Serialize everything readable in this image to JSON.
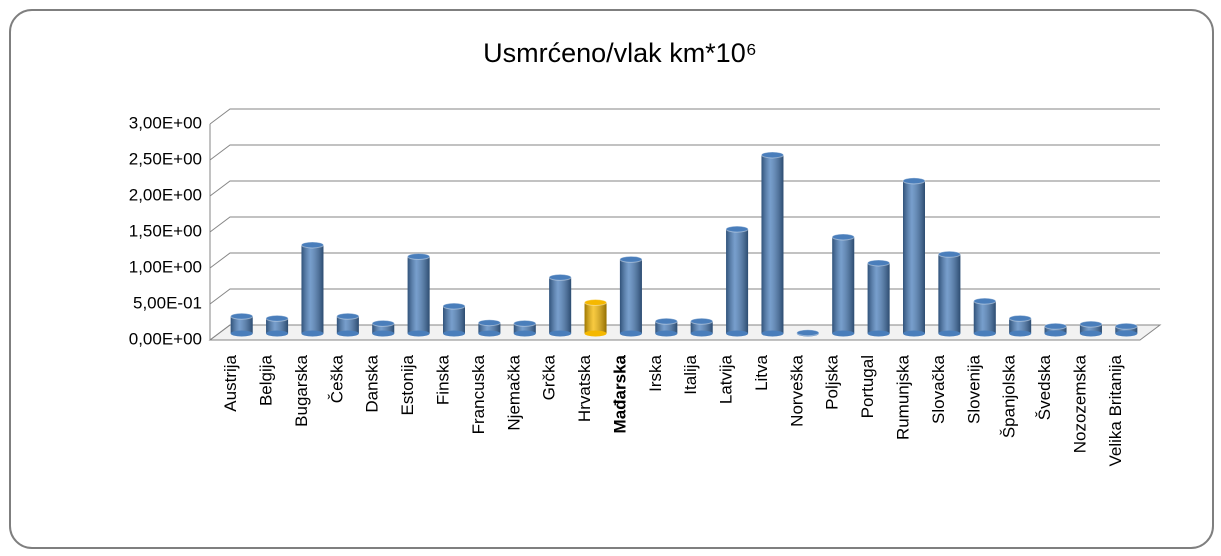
{
  "chart_data": {
    "type": "bar3d",
    "title": "Usmrćeno/vlak km*10⁶",
    "categories": [
      "Austrija",
      "Belgija",
      "Bugarska",
      "Češka",
      "Danska",
      "Estonija",
      "Finska",
      "Francuska",
      "Njemačka",
      "Grčka",
      "Hrvatska",
      "Mađarska",
      "Irska",
      "Italija",
      "Latvija",
      "Litva",
      "Norveška",
      "Poljska",
      "Portugal",
      "Rumunjska",
      "Slovačka",
      "Slovenija",
      "Španjolska",
      "Švedska",
      "Nozozemska",
      "Velika Britanija"
    ],
    "values": [
      0.24,
      0.21,
      1.23,
      0.24,
      0.14,
      1.07,
      0.38,
      0.15,
      0.14,
      0.78,
      0.43,
      1.03,
      0.17,
      0.17,
      1.45,
      2.48,
      0.01,
      1.34,
      0.98,
      2.12,
      1.1,
      0.45,
      0.21,
      0.1,
      0.13,
      0.1
    ],
    "colors": [
      "#4a7ebb",
      "#4a7ebb",
      "#4a7ebb",
      "#4a7ebb",
      "#4a7ebb",
      "#4a7ebb",
      "#4a7ebb",
      "#4a7ebb",
      "#4a7ebb",
      "#4a7ebb",
      "#f5b800",
      "#4a7ebb",
      "#4a7ebb",
      "#4a7ebb",
      "#4a7ebb",
      "#4a7ebb",
      "#4a7ebb",
      "#4a7ebb",
      "#4a7ebb",
      "#4a7ebb",
      "#4a7ebb",
      "#4a7ebb",
      "#4a7ebb",
      "#4a7ebb",
      "#4a7ebb",
      "#4a7ebb"
    ],
    "ylim": [
      0,
      3
    ],
    "yticks": [
      {
        "value": 0,
        "label": "0,00E+00"
      },
      {
        "value": 0.5,
        "label": "5,00E-01"
      },
      {
        "value": 1,
        "label": "1,00E+00"
      },
      {
        "value": 1.5,
        "label": "1,50E+00"
      },
      {
        "value": 2,
        "label": "2,00E+00"
      },
      {
        "value": 2.5,
        "label": "2,50E+00"
      },
      {
        "value": 3,
        "label": "3,00E+00"
      }
    ],
    "grid": true
  }
}
